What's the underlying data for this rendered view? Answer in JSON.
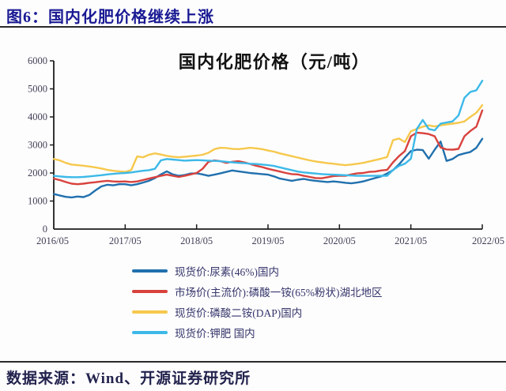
{
  "header": {
    "title": "图6：国内化肥价格继续上涨"
  },
  "footer": {
    "source": "数据来源：Wind、开源证券研究所"
  },
  "chart_data": {
    "type": "line",
    "title": "国内化肥价格（元/吨）",
    "xlabel": "",
    "ylabel": "",
    "ylim": [
      0,
      6000
    ],
    "y_ticks": [
      0,
      1000,
      2000,
      3000,
      4000,
      5000,
      6000
    ],
    "x_tick_labels": [
      "2016/05",
      "2017/05",
      "2018/05",
      "2019/05",
      "2020/05",
      "2021/05",
      "2022/05"
    ],
    "x_tick_months": [
      0,
      12,
      24,
      36,
      48,
      60,
      72
    ],
    "x_start": "2016/05",
    "x_end": "2022/05",
    "x_unit": "month",
    "grid": false,
    "legend_position": "bottom",
    "series": [
      {
        "name": "现货价:尿素(46%)国内",
        "color": "#2170ad",
        "values": [
          1250,
          1200,
          1150,
          1130,
          1160,
          1140,
          1220,
          1380,
          1520,
          1580,
          1560,
          1600,
          1600,
          1560,
          1600,
          1660,
          1720,
          1820,
          1950,
          2060,
          1950,
          1900,
          1930,
          1980,
          1990,
          1950,
          1900,
          1940,
          1990,
          2040,
          2090,
          2060,
          2030,
          2000,
          1980,
          1960,
          1940,
          1880,
          1800,
          1760,
          1720,
          1760,
          1790,
          1750,
          1720,
          1700,
          1680,
          1700,
          1680,
          1650,
          1630,
          1660,
          1700,
          1760,
          1820,
          1880,
          1980,
          2100,
          2300,
          2550,
          2780,
          2830,
          2820,
          2510,
          2830,
          3120,
          2430,
          2500,
          2640,
          2700,
          2750,
          2900,
          3220
        ]
      },
      {
        "name": "市场价(主流价):磷酸一铵(65%粉状)湖北地区",
        "color": "#d8423d",
        "values": [
          1800,
          1750,
          1680,
          1620,
          1600,
          1620,
          1650,
          1670,
          1700,
          1720,
          1700,
          1690,
          1700,
          1680,
          1700,
          1750,
          1800,
          1850,
          1900,
          1940,
          1900,
          1860,
          1900,
          1950,
          2000,
          2150,
          2400,
          2450,
          2420,
          2360,
          2400,
          2420,
          2380,
          2320,
          2260,
          2210,
          2150,
          2100,
          2050,
          2000,
          1960,
          1950,
          1900,
          1860,
          1820,
          1810,
          1850,
          1890,
          1900,
          1900,
          1950,
          1990,
          2000,
          2040,
          2050,
          2090,
          2110,
          2380,
          2600,
          2780,
          3310,
          3440,
          3420,
          3390,
          3310,
          2910,
          2840,
          2830,
          2860,
          3310,
          3500,
          3650,
          4230
        ]
      },
      {
        "name": "现货价:磷酸二铵(DAP)国内",
        "color": "#f6c84c",
        "values": [
          2500,
          2450,
          2360,
          2300,
          2280,
          2260,
          2230,
          2200,
          2160,
          2110,
          2080,
          2060,
          2040,
          2100,
          2590,
          2560,
          2650,
          2700,
          2660,
          2610,
          2580,
          2560,
          2580,
          2600,
          2620,
          2650,
          2720,
          2850,
          2900,
          2890,
          2860,
          2850,
          2870,
          2900,
          2880,
          2850,
          2800,
          2760,
          2700,
          2650,
          2600,
          2550,
          2500,
          2450,
          2410,
          2380,
          2350,
          2330,
          2300,
          2280,
          2300,
          2330,
          2360,
          2410,
          2460,
          2510,
          2570,
          3170,
          3230,
          3100,
          3490,
          3570,
          3650,
          3700,
          3660,
          3700,
          3730,
          3760,
          3790,
          3840,
          4000,
          4150,
          4420
        ]
      },
      {
        "name": "现货价:钾肥 国内",
        "color": "#3cb9e8",
        "values": [
          1900,
          1880,
          1860,
          1850,
          1850,
          1860,
          1880,
          1900,
          1920,
          1950,
          1970,
          1990,
          2000,
          2020,
          2050,
          2080,
          2100,
          2150,
          2450,
          2500,
          2480,
          2460,
          2440,
          2450,
          2460,
          2450,
          2440,
          2430,
          2420,
          2400,
          2380,
          2360,
          2350,
          2330,
          2320,
          2300,
          2280,
          2250,
          2200,
          2150,
          2100,
          2050,
          2020,
          2000,
          1980,
          1960,
          1950,
          1940,
          1930,
          1920,
          1910,
          1900,
          1900,
          1900,
          1900,
          1900,
          1900,
          2110,
          2250,
          2330,
          2510,
          3570,
          3890,
          3570,
          3520,
          3760,
          3800,
          3840,
          4050,
          4680,
          4890,
          4950,
          5290
        ]
      }
    ]
  }
}
